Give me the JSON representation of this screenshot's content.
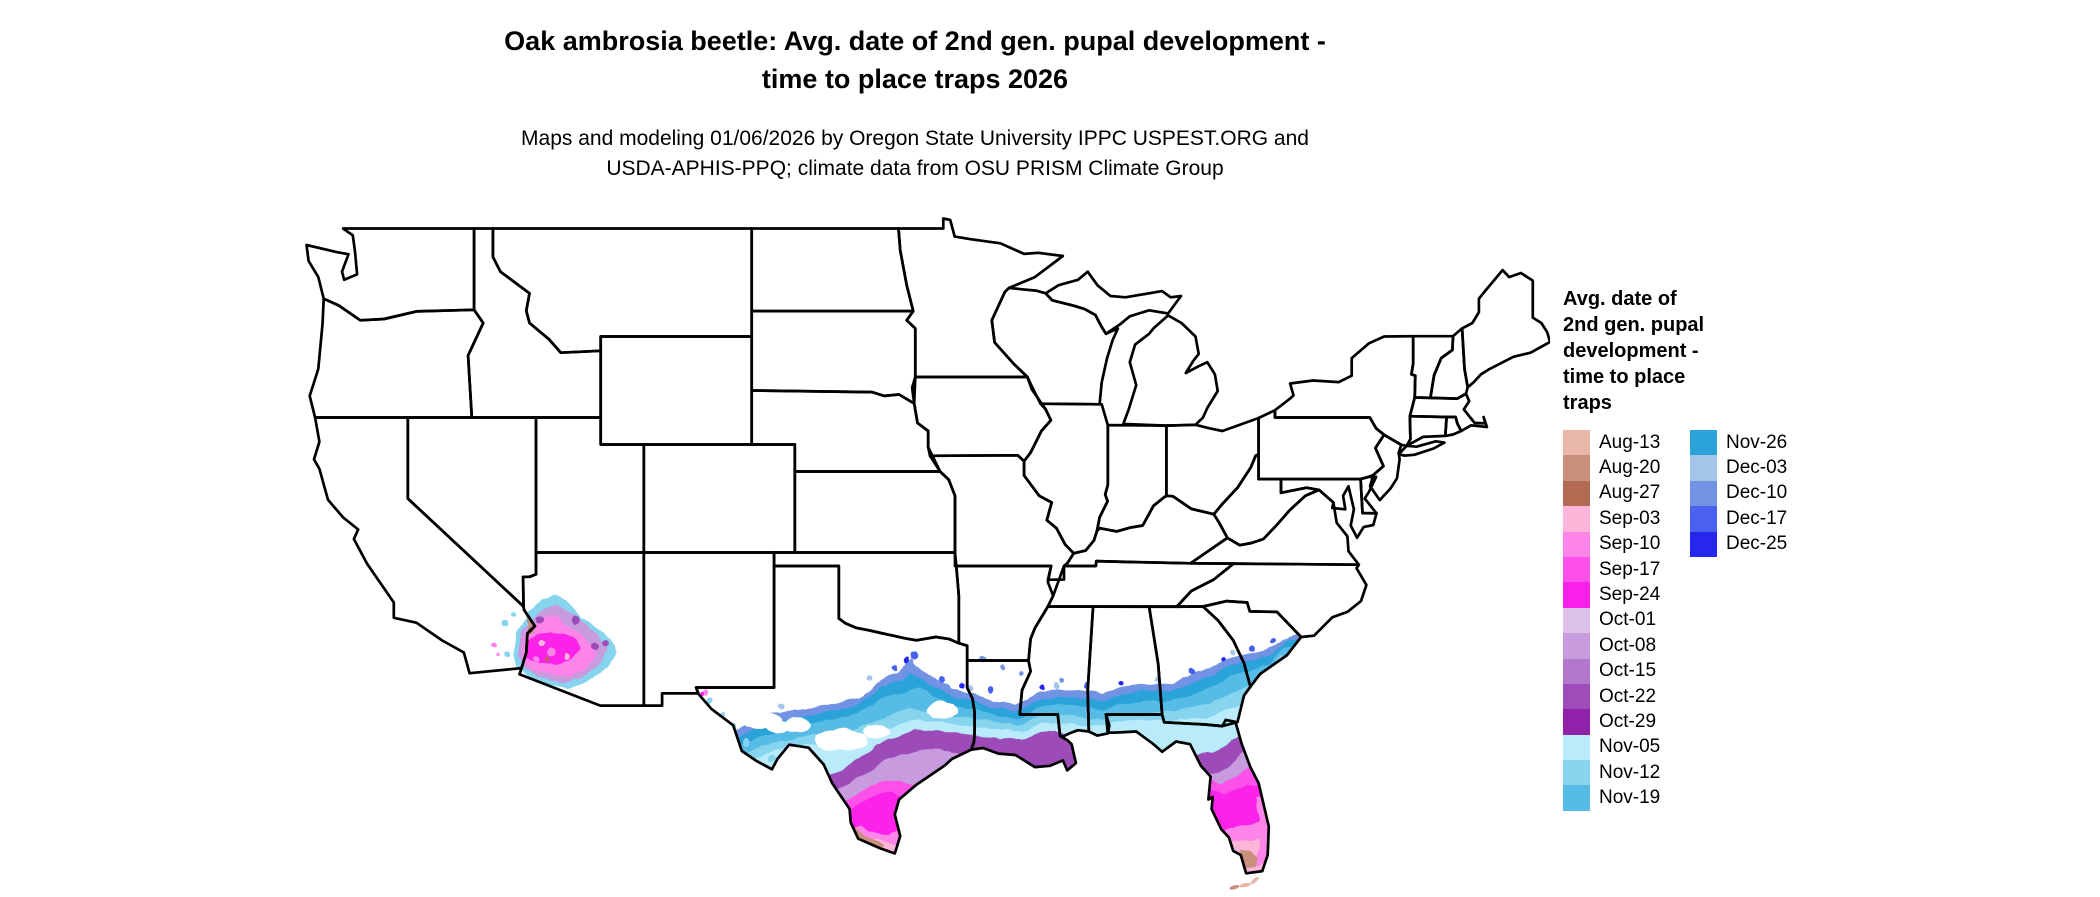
{
  "title": {
    "line1": "Oak ambrosia beetle: Avg. date of 2nd gen. pupal development -",
    "line2": "time to place traps 2026"
  },
  "subtitle": {
    "line1": "Maps and modeling 01/06/2026 by Oregon State University IPPC USPEST.ORG and",
    "line2": "USDA-APHIS-PPQ; climate data from OSU PRISM Climate Group"
  },
  "legend": {
    "title_lines": [
      "Avg. date of",
      "2nd gen. pupal",
      "development -",
      "time to place",
      "traps"
    ],
    "column_split": 15,
    "entries": [
      {
        "label": "Aug-13",
        "color": "#e9b7a9"
      },
      {
        "label": "Aug-20",
        "color": "#c9907e"
      },
      {
        "label": "Aug-27",
        "color": "#b26a52"
      },
      {
        "label": "Sep-03",
        "color": "#fdb6da"
      },
      {
        "label": "Sep-10",
        "color": "#fd85e9"
      },
      {
        "label": "Sep-17",
        "color": "#fd51e9"
      },
      {
        "label": "Sep-24",
        "color": "#fb20e9"
      },
      {
        "label": "Oct-01",
        "color": "#dcc1e8"
      },
      {
        "label": "Oct-08",
        "color": "#c89ade"
      },
      {
        "label": "Oct-15",
        "color": "#b077cb"
      },
      {
        "label": "Oct-22",
        "color": "#9e4cba"
      },
      {
        "label": "Oct-29",
        "color": "#8f22a8"
      },
      {
        "label": "Nov-05",
        "color": "#b9ebfb"
      },
      {
        "label": "Nov-12",
        "color": "#87d4ef"
      },
      {
        "label": "Nov-19",
        "color": "#57bce5"
      },
      {
        "label": "Nov-26",
        "color": "#2ca3d8"
      },
      {
        "label": "Dec-03",
        "color": "#a3c6e8"
      },
      {
        "label": "Dec-10",
        "color": "#7292e3"
      },
      {
        "label": "Dec-17",
        "color": "#4a60ee"
      },
      {
        "label": "Dec-25",
        "color": "#2626ee"
      }
    ]
  },
  "chart_data": {
    "type": "choropleth_map",
    "region": "Contiguous United States with state borders",
    "legend_title": "Avg. date of 2nd gen. pupal development - time to place traps",
    "categories": [
      "Aug-13",
      "Aug-20",
      "Aug-27",
      "Sep-03",
      "Sep-10",
      "Sep-17",
      "Sep-24",
      "Oct-01",
      "Oct-08",
      "Oct-15",
      "Oct-22",
      "Oct-29",
      "Nov-05",
      "Nov-12",
      "Nov-19",
      "Nov-26",
      "Dec-03",
      "Dec-10",
      "Dec-17",
      "Dec-25"
    ],
    "colors": [
      "#e9b7a9",
      "#c9907e",
      "#b26a52",
      "#fdb6da",
      "#fd85e9",
      "#fd51e9",
      "#fb20e9",
      "#dcc1e8",
      "#c89ade",
      "#b077cb",
      "#9e4cba",
      "#8f22a8",
      "#b9ebfb",
      "#87d4ef",
      "#57bce5",
      "#2ca3d8",
      "#a3c6e8",
      "#7292e3",
      "#4a60ee",
      "#2626ee"
    ],
    "colored_regions": [
      "Southwestern Arizona and lower Colorado River area of California: Sep-Oct pinks and magentas with brown and cyan speckles",
      "Southern Texas: brown/pink Aug-Sep dates at Rio Grande tip grading north through magenta, purple (Oct) and cyan/blue (Nov-Dec) bands",
      "Gulf Coast band from Texas through Louisiana, southern Mississippi, Alabama, Georgia to coastal South Carolina: Nov-Dec cyans and speckled blues",
      "Southern Louisiana delta and northeast Florida: Oct purples",
      "Florida peninsula: cyan north, purple then magenta center, pink and brown Aug dates at southern tip and Keys"
    ],
    "uncolored_regions_note": "Remaining states shown white (dates outside mapped range)"
  }
}
